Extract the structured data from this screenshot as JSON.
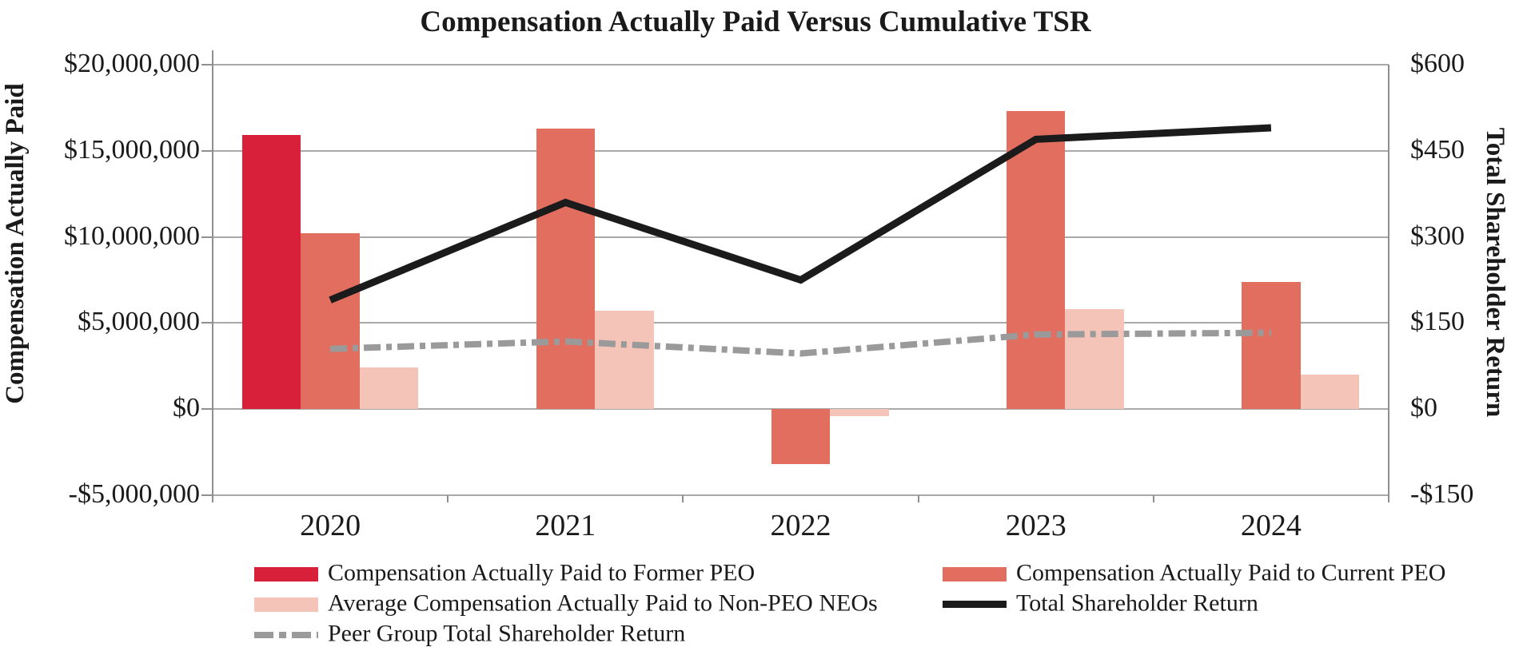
{
  "title": "Compensation Actually Paid Versus Cumulative TSR",
  "left_axis": {
    "label": "Compensation Actually Paid",
    "ticks": [
      {
        "label": "$20,000,000",
        "value": 20000000
      },
      {
        "label": "$15,000,000",
        "value": 15000000
      },
      {
        "label": "$10,000,000",
        "value": 10000000
      },
      {
        "label": "$5,000,000",
        "value": 5000000
      },
      {
        "label": "$0",
        "value": 0
      },
      {
        "label": "-$5,000,000",
        "value": -5000000
      }
    ]
  },
  "right_axis": {
    "label": "Total Shareholder Return",
    "ticks": [
      {
        "label": "$600",
        "value": 600
      },
      {
        "label": "$450",
        "value": 450
      },
      {
        "label": "$300",
        "value": 300
      },
      {
        "label": "$150",
        "value": 150
      },
      {
        "label": "$0",
        "value": 0
      },
      {
        "label": "-$150",
        "value": -150
      }
    ]
  },
  "chart_data": {
    "type": "combo-bar-line",
    "categories": [
      "2020",
      "2021",
      "2022",
      "2023",
      "2024"
    ],
    "series": [
      {
        "key": "former-peo",
        "name": "Compensation Actually Paid to Former PEO",
        "type": "bar",
        "axis": "left",
        "color": "#d8203a",
        "values": [
          15900000,
          null,
          null,
          null,
          null
        ]
      },
      {
        "key": "current-peo",
        "name": "Compensation Actually Paid to Current PEO",
        "type": "bar",
        "axis": "left",
        "color": "#e26e60",
        "values": [
          10200000,
          16300000,
          -3200000,
          17300000,
          7400000
        ]
      },
      {
        "key": "non-peo-neos",
        "name": "Average Compensation Actually Paid to Non-PEO NEOs",
        "type": "bar",
        "axis": "left",
        "color": "#f4c4b8",
        "values": [
          2400000,
          5700000,
          -400000,
          5800000,
          2000000
        ]
      },
      {
        "key": "tsr",
        "name": "Total Shareholder Return",
        "type": "line",
        "style": "solid",
        "axis": "right",
        "color": "#1b1b1b",
        "values": [
          190,
          360,
          225,
          470,
          490
        ]
      },
      {
        "key": "peer-group-tsr",
        "name": "Peer Group Total Shareholder Return",
        "type": "line",
        "style": "dashed",
        "axis": "right",
        "color": "#9a9a9a",
        "values": [
          105,
          118,
          97,
          130,
          133
        ]
      }
    ],
    "left_ylim": [
      -5000000,
      20000000
    ],
    "right_ylim": [
      -150,
      600
    ],
    "grid": true,
    "legend_position": "bottom"
  },
  "legend": {
    "columns": [
      [
        0,
        2,
        4
      ],
      [
        1,
        3
      ]
    ]
  }
}
